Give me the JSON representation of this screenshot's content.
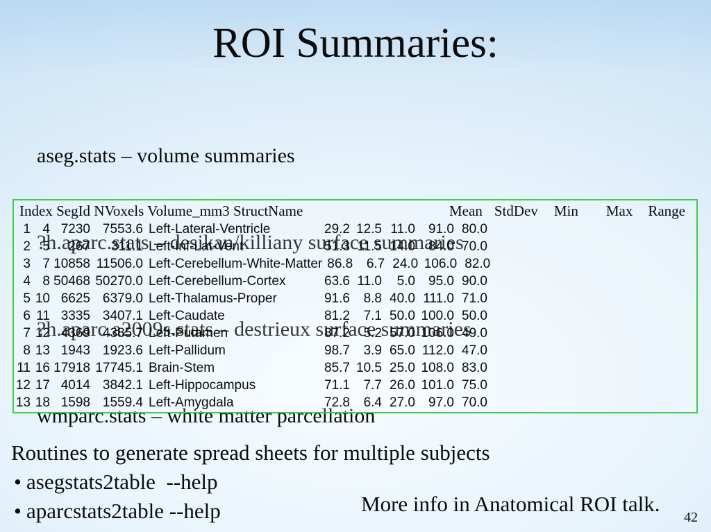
{
  "slide": {
    "title": "ROI Summaries:",
    "page_number": "42"
  },
  "colors": {
    "table_border": "#3ecd49",
    "background_edge": "#b7d8f2",
    "background_center": "#f7fcff",
    "text": "#0b0b0b"
  },
  "intro_lines": [
    "aseg.stats – volume summaries",
    "?h.aparc.stats – desikan/killiany surface summaries",
    "?h.aparc.a2009s.stats – destrieux surface summaries",
    "wmparc.stats – white matter parcellation"
  ],
  "stats_table": {
    "header_left": [
      "Index",
      "SegId",
      "NVoxels",
      "Volume_mm3",
      "StructName"
    ],
    "header_right": [
      "Mean",
      "StdDev",
      "Min",
      "Max",
      "Range"
    ],
    "rows": [
      {
        "index": "1",
        "seg_id": "4",
        "n_voxels": "7230",
        "volume_mm3": "7553.6",
        "struct_name": "Left-Lateral-Ventricle",
        "mean": "29.2",
        "std_dev": "12.5",
        "min": "11.0",
        "max": "91.0",
        "range": "80.0"
      },
      {
        "index": "2",
        "seg_id": "5",
        "n_voxels": "267",
        "volume_mm3": "311.1",
        "struct_name": "Left-Inf-Lat-Vent",
        "mean": "51.3",
        "std_dev": "11.5",
        "min": "14.0",
        "max": "84.0",
        "range": "70.0"
      },
      {
        "index": "3",
        "seg_id": "7",
        "n_voxels": "10858",
        "volume_mm3": "11506.0",
        "struct_name": "Left-Cerebellum-White-Matter",
        "mean": "86.8",
        "std_dev": "6.7",
        "min": "24.0",
        "max": "106.0",
        "range": "82.0"
      },
      {
        "index": "4",
        "seg_id": "8",
        "n_voxels": "50468",
        "volume_mm3": "50270.0",
        "struct_name": "Left-Cerebellum-Cortex",
        "mean": "63.6",
        "std_dev": "11.0",
        "min": "5.0",
        "max": "95.0",
        "range": "90.0"
      },
      {
        "index": "5",
        "seg_id": "10",
        "n_voxels": "6625",
        "volume_mm3": "6379.0",
        "struct_name": "Left-Thalamus-Proper",
        "mean": "91.6",
        "std_dev": "8.8",
        "min": "40.0",
        "max": "111.0",
        "range": "71.0"
      },
      {
        "index": "6",
        "seg_id": "11",
        "n_voxels": "3335",
        "volume_mm3": "3407.1",
        "struct_name": "Left-Caudate",
        "mean": "81.2",
        "std_dev": "7.1",
        "min": "50.0",
        "max": "100.0",
        "range": "50.0"
      },
      {
        "index": "7",
        "seg_id": "12",
        "n_voxels": "4369",
        "volume_mm3": "4385.7",
        "struct_name": "Left-Putamen",
        "mean": "87.2",
        "std_dev": "5.2",
        "min": "57.0",
        "max": "106.0",
        "range": "49.0"
      },
      {
        "index": "8",
        "seg_id": "13",
        "n_voxels": "1943",
        "volume_mm3": "1923.6",
        "struct_name": "Left-Pallidum",
        "mean": "98.7",
        "std_dev": "3.9",
        "min": "65.0",
        "max": "112.0",
        "range": "47.0"
      },
      {
        "index": "11",
        "seg_id": "16",
        "n_voxels": "17918",
        "volume_mm3": "17745.1",
        "struct_name": "Brain-Stem",
        "mean": "85.7",
        "std_dev": "10.5",
        "min": "25.0",
        "max": "108.0",
        "range": "83.0"
      },
      {
        "index": "12",
        "seg_id": "17",
        "n_voxels": "4014",
        "volume_mm3": "3842.1",
        "struct_name": "Left-Hippocampus",
        "mean": "71.1",
        "std_dev": "7.7",
        "min": "26.0",
        "max": "101.0",
        "range": "75.0"
      },
      {
        "index": "13",
        "seg_id": "18",
        "n_voxels": "1598",
        "volume_mm3": "1559.4",
        "struct_name": "Left-Amygdala",
        "mean": "72.8",
        "std_dev": "6.4",
        "min": "27.0",
        "max": "97.0",
        "range": "70.0"
      }
    ]
  },
  "footer": {
    "routines_line": "Routines to generate spread sheets for multiple subjects",
    "bullet_char": "•",
    "bullets": [
      "asegstats2table  --help",
      "aparcstats2table --help"
    ],
    "more_info": "More info in Anatomical ROI talk."
  }
}
